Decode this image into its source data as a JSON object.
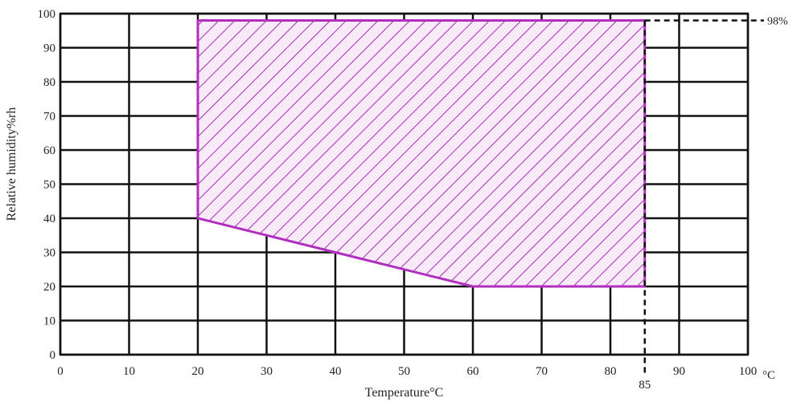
{
  "chart_data": {
    "type": "area",
    "xlabel": "Temperature°C",
    "ylabel": "Relative humidity%rh",
    "x_unit_label": "°C",
    "xlim": [
      0,
      100
    ],
    "ylim": [
      0,
      100
    ],
    "x_ticks": [
      0,
      10,
      20,
      30,
      40,
      50,
      60,
      70,
      80,
      90,
      100
    ],
    "x_tick_labels": [
      "0",
      "10",
      "20",
      "30",
      "40",
      "50",
      "60",
      "70",
      "80",
      "90",
      "100"
    ],
    "y_ticks": [
      0,
      10,
      20,
      30,
      40,
      50,
      60,
      70,
      80,
      90,
      100
    ],
    "y_tick_labels": [
      "0",
      "10",
      "20",
      "30",
      "40",
      "50",
      "60",
      "70",
      "80",
      "90",
      "100"
    ],
    "grid": true,
    "region": {
      "fill": "hatched",
      "color": "#b02fbf",
      "fill_color": "#f7e8f8",
      "points": [
        [
          20,
          40
        ],
        [
          20,
          98
        ],
        [
          85,
          98
        ],
        [
          85,
          20
        ],
        [
          60,
          20
        ],
        [
          40,
          30
        ],
        [
          20,
          40
        ]
      ]
    },
    "annotations": [
      {
        "label": "98%",
        "x": 85,
        "y": 98,
        "direction": "right"
      },
      {
        "label": "85",
        "x": 85,
        "y": 98,
        "direction": "down"
      }
    ]
  }
}
